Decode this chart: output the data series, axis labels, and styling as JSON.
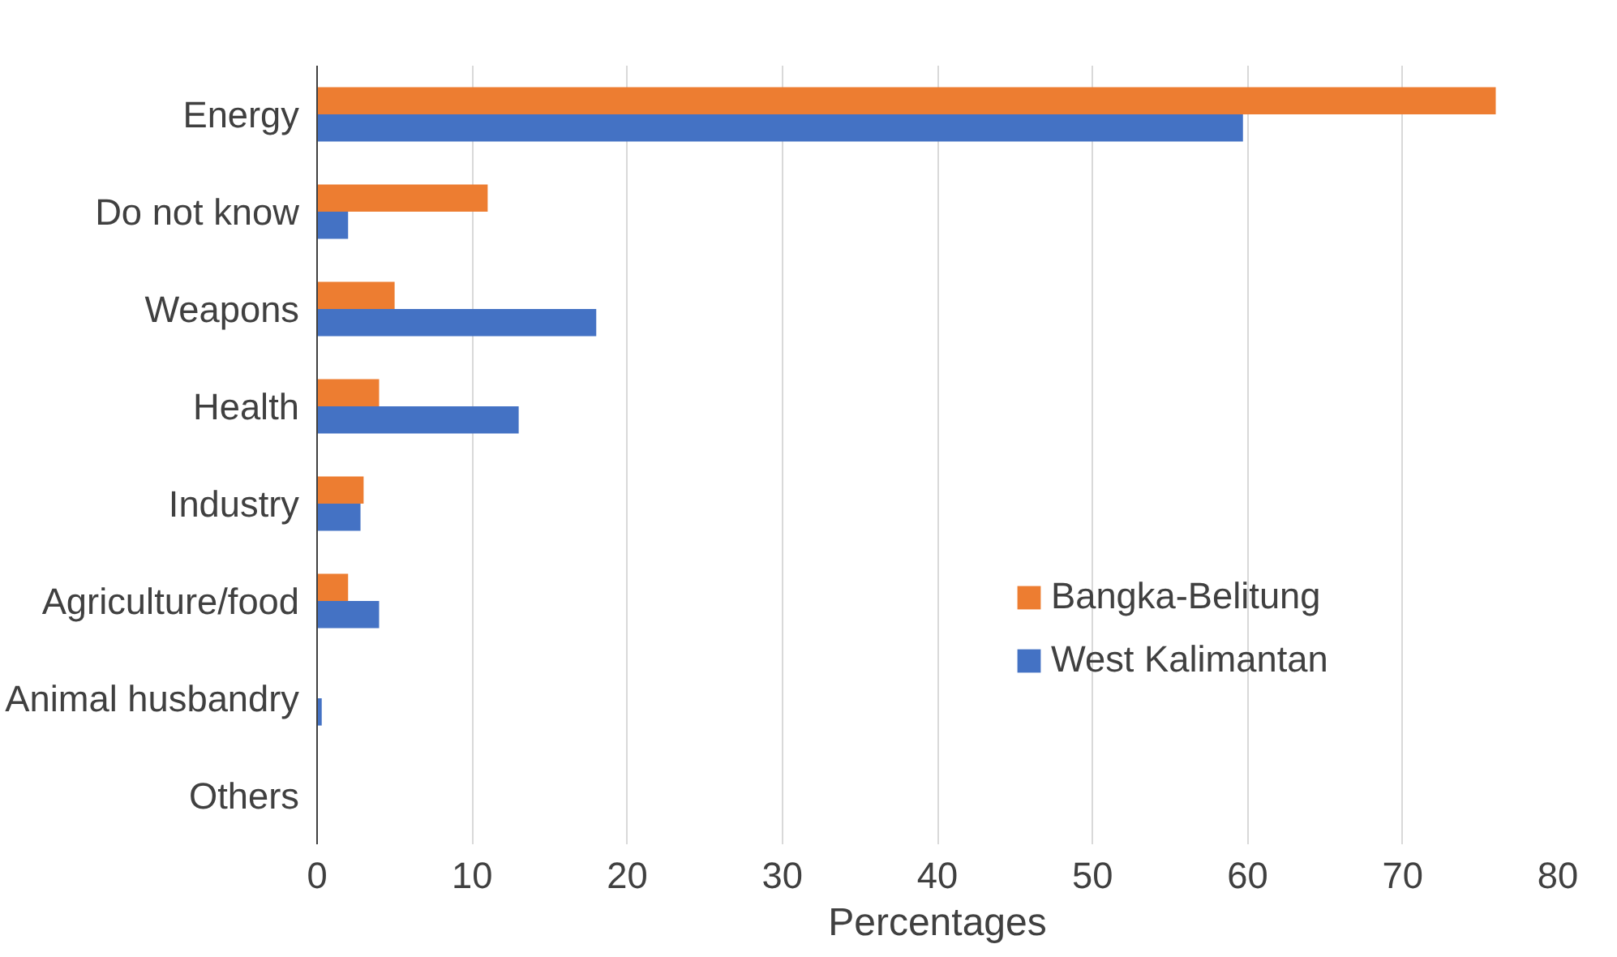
{
  "chart_data": {
    "type": "bar",
    "orientation": "horizontal",
    "xlabel": "Percentages",
    "categories": [
      "Energy",
      "Do not know",
      "Weapons",
      "Health",
      "Industry",
      "Agriculture/food",
      "Animal husbandry",
      "Others"
    ],
    "series": [
      {
        "name": "Bangka-Belitung",
        "color": "#ed7d31",
        "values": [
          76,
          11,
          5,
          4,
          3,
          2,
          0,
          0
        ]
      },
      {
        "name": "West Kalimantan",
        "color": "#4472c4",
        "values": [
          59.7,
          2,
          18,
          13,
          2.8,
          4,
          0.3,
          0
        ]
      }
    ],
    "xlim": [
      0,
      80
    ],
    "xticks": [
      0,
      10,
      20,
      30,
      40,
      50,
      60,
      70,
      80
    ],
    "grid": "x",
    "legend": "right"
  }
}
